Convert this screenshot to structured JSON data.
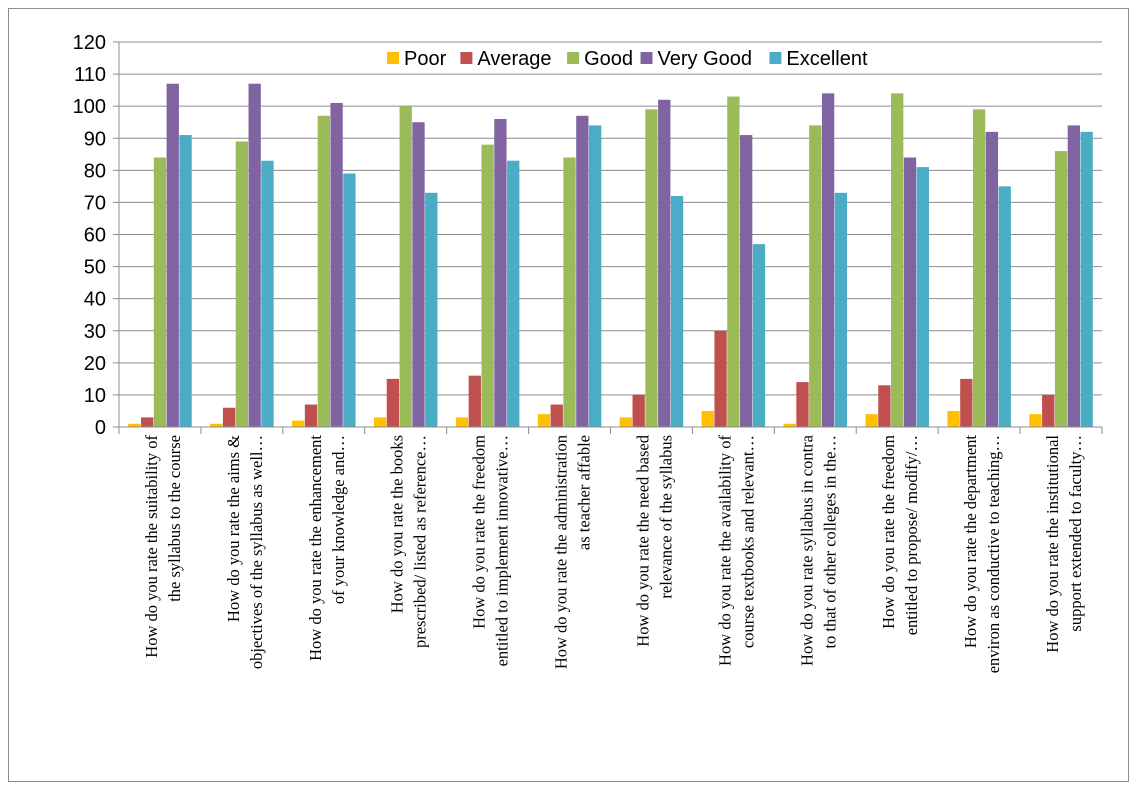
{
  "chart_data": {
    "type": "bar",
    "title": "",
    "xlabel": "",
    "ylabel": "",
    "ylim": [
      0,
      120
    ],
    "yticks": [
      0,
      10,
      20,
      30,
      40,
      50,
      60,
      70,
      80,
      90,
      100,
      110,
      120
    ],
    "grid": true,
    "legend_position": "top",
    "categories": [
      [
        "How do you rate the suitability of",
        "the syllabus to the course"
      ],
      [
        "How do you rate the aims &",
        "objectives of the syllabus as well…"
      ],
      [
        "How do you rate the enhancement",
        "of your knowledge and…"
      ],
      [
        "How do you rate the books",
        "prescribed/ listed as reference…"
      ],
      [
        "How do you rate the freedom",
        "entitled to implement innovative…"
      ],
      [
        "How do you rate the administration",
        "as teacher affable"
      ],
      [
        "How do you rate the need based",
        "relevance of the syllabus"
      ],
      [
        "How do you rate the availability of",
        "course textbooks and relevant…"
      ],
      [
        "How do you rate syllabus in contra",
        "to that of other colleges in the…"
      ],
      [
        "How do you rate the freedom",
        "entitled to propose/ modify/…"
      ],
      [
        "How do you rate the department",
        "environ as conductive to teaching…"
      ],
      [
        "How do you rate the institutional",
        "support extended to faculty…"
      ]
    ],
    "series": [
      {
        "name": "Poor",
        "color": "#FFC000",
        "values": [
          1,
          1,
          2,
          3,
          3,
          4,
          3,
          5,
          1,
          4,
          5,
          4
        ]
      },
      {
        "name": "Average",
        "color": "#C0504D",
        "values": [
          3,
          6,
          7,
          15,
          16,
          7,
          10,
          30,
          14,
          13,
          15,
          10
        ]
      },
      {
        "name": "Good",
        "color": "#9BBB59",
        "values": [
          84,
          89,
          97,
          100,
          88,
          84,
          99,
          103,
          94,
          104,
          99,
          86
        ]
      },
      {
        "name": "Very Good",
        "color": "#8064A2",
        "values": [
          107,
          107,
          101,
          95,
          96,
          97,
          102,
          91,
          104,
          84,
          92,
          94
        ]
      },
      {
        "name": "Excellent",
        "color": "#4BACC6",
        "values": [
          91,
          83,
          79,
          73,
          83,
          94,
          72,
          57,
          73,
          81,
          75,
          92
        ]
      }
    ]
  }
}
